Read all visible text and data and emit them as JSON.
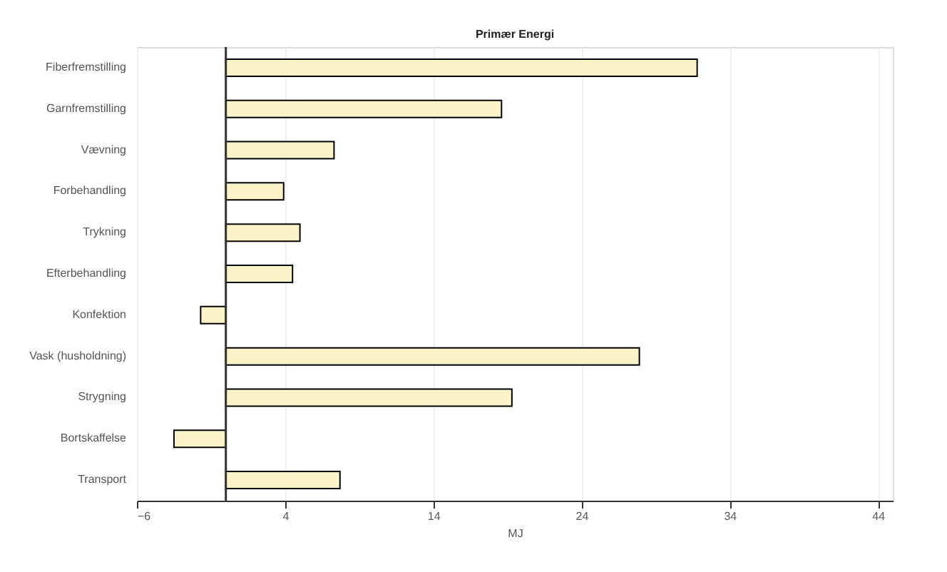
{
  "chart_data": {
    "type": "bar",
    "orientation": "horizontal",
    "title": "Primær Energi",
    "xlabel": "MJ",
    "categories": [
      "Fiberfremstilling",
      "Garnfremstilling",
      "Vævning",
      "Forbehandling",
      "Trykning",
      "Efterbehandling",
      "Konfektion",
      "Vask (husholdning)",
      "Strygning",
      "Bortskaffelse",
      "Transport"
    ],
    "values": [
      31.8,
      18.6,
      7.3,
      3.9,
      5.0,
      4.5,
      -1.7,
      27.9,
      19.3,
      -3.5,
      7.7
    ],
    "color": "#faf3c8",
    "xlim": [
      -6,
      45
    ],
    "xticks": [
      -6,
      4,
      14,
      24,
      34,
      44
    ],
    "grid": "x"
  }
}
